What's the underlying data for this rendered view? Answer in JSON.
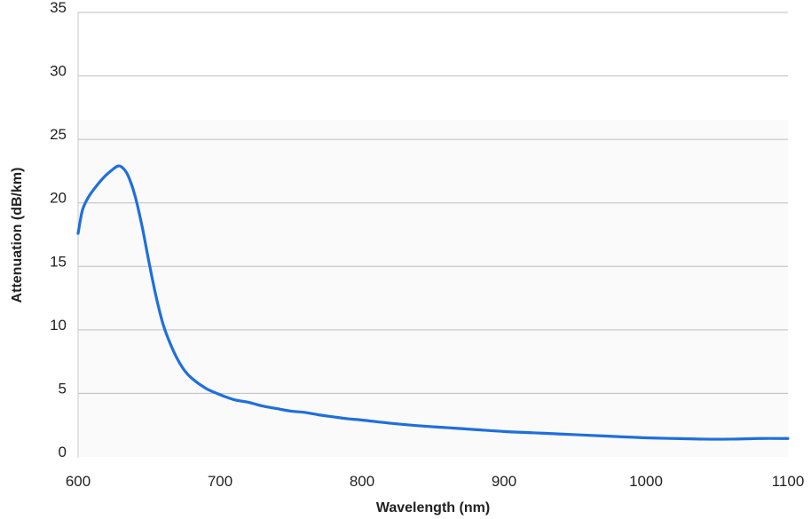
{
  "chart_data": {
    "type": "line",
    "title": "",
    "xlabel": "Wavelength (nm)",
    "ylabel": "Attenuation (dB/km)",
    "xlim": [
      600,
      1100
    ],
    "ylim": [
      0,
      35
    ],
    "x_ticks": [
      600,
      700,
      800,
      900,
      1000,
      1100
    ],
    "y_ticks": [
      0,
      5,
      10,
      15,
      20,
      25,
      30,
      35
    ],
    "grid": "horizontal",
    "legend": "none",
    "series": [
      {
        "color": "#1f6fdc",
        "x": [
          600,
          603,
          607,
          612,
          618,
          624,
          628,
          631,
          635,
          640,
          645,
          650,
          655,
          660,
          665,
          670,
          675,
          680,
          690,
          700,
          710,
          720,
          730,
          740,
          750,
          760,
          770,
          780,
          790,
          800,
          820,
          840,
          860,
          880,
          900,
          920,
          940,
          960,
          980,
          1000,
          1020,
          1040,
          1060,
          1080,
          1100
        ],
        "y": [
          17.6,
          19.4,
          20.4,
          21.2,
          22.0,
          22.6,
          22.9,
          22.8,
          22.2,
          20.6,
          18.2,
          15.3,
          12.6,
          10.4,
          8.9,
          7.7,
          6.8,
          6.2,
          5.4,
          4.9,
          4.5,
          4.3,
          4.0,
          3.8,
          3.6,
          3.5,
          3.3,
          3.15,
          3.0,
          2.9,
          2.65,
          2.45,
          2.3,
          2.15,
          2.0,
          1.9,
          1.8,
          1.7,
          1.6,
          1.5,
          1.45,
          1.4,
          1.4,
          1.45,
          1.45
        ]
      }
    ]
  }
}
